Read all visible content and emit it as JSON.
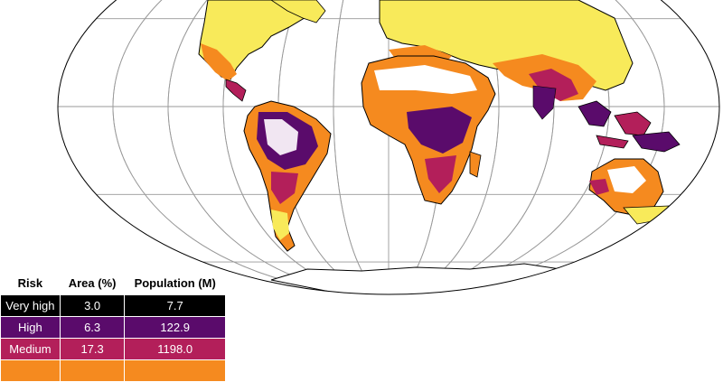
{
  "legend": {
    "headers": [
      "Risk",
      "Area (%)",
      "Population (M)"
    ],
    "rows": [
      {
        "risk": "Very high",
        "area": "3.0",
        "population": "7.7",
        "color": "#000000"
      },
      {
        "risk": "High",
        "area": "6.3",
        "population": "122.9",
        "color": "#5a0b6b"
      },
      {
        "risk": "Medium",
        "area": "17.3",
        "population": "1198.0",
        "color": "#b31f5a"
      },
      {
        "risk": "",
        "area": "",
        "population": "",
        "color": "#f58a1f"
      }
    ]
  },
  "map": {
    "projection": "mollweide",
    "graticule": true,
    "palette": {
      "very_high": "#000004",
      "high": "#5a0b6b",
      "medium": "#b31f5a",
      "low": "#f58a1f",
      "very_low": "#f8ea5a",
      "graticule": "#999999",
      "outline": "#000000"
    }
  }
}
